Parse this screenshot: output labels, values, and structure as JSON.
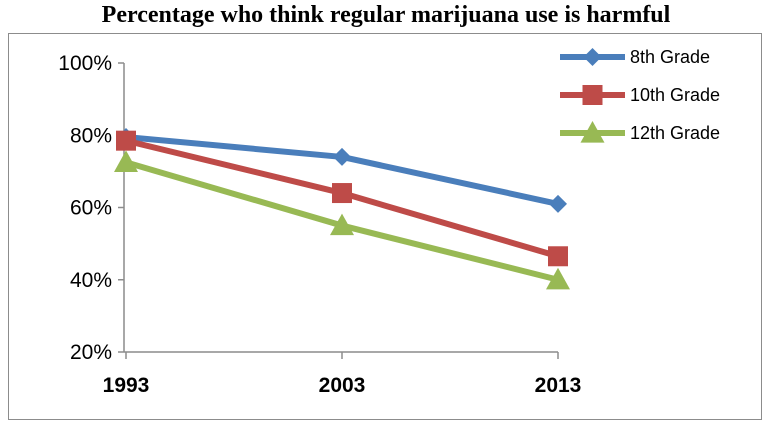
{
  "chart_data": {
    "type": "line",
    "title": "Percentage who think regular marijuana use is harmful",
    "x": [
      "1993",
      "2003",
      "2013"
    ],
    "ylim": [
      20,
      100
    ],
    "yticks": [
      "20%",
      "40%",
      "60%",
      "80%",
      "100%"
    ],
    "grid": false,
    "legend_position": "top-right",
    "series": [
      {
        "name": "8th Grade",
        "values": [
          79.5,
          74,
          61
        ],
        "color": "#4a7ebb",
        "marker": "diamond"
      },
      {
        "name": "10th Grade",
        "values": [
          78.5,
          64,
          46.5
        ],
        "color": "#be4b48",
        "marker": "square"
      },
      {
        "name": "12th Grade",
        "values": [
          72.5,
          55,
          40
        ],
        "color": "#98b954",
        "marker": "triangle"
      }
    ]
  }
}
